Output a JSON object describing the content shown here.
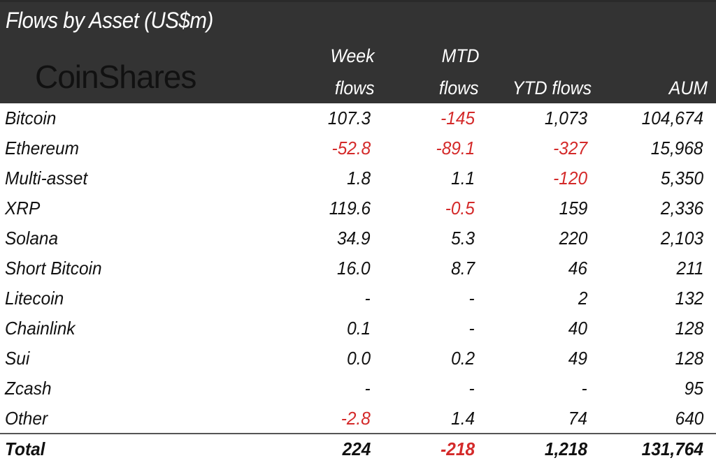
{
  "chart_data": {
    "type": "table",
    "title": "Flows by Asset (US$m)",
    "logo": "CoinShares",
    "columns": [
      [
        "Week",
        "flows"
      ],
      [
        "MTD",
        "flows"
      ],
      [
        "",
        "YTD flows"
      ],
      [
        "",
        "AUM"
      ]
    ],
    "negative_color": "#d42a2a",
    "header_color": "#333333",
    "rows": [
      {
        "name": "Bitcoin",
        "values": [
          "107.3",
          "-145",
          "1,073",
          "104,674"
        ]
      },
      {
        "name": "Ethereum",
        "values": [
          "-52.8",
          "-89.1",
          "-327",
          "15,968"
        ]
      },
      {
        "name": "Multi-asset",
        "values": [
          "1.8",
          "1.1",
          "-120",
          "5,350"
        ]
      },
      {
        "name": "XRP",
        "values": [
          "119.6",
          "-0.5",
          "159",
          "2,336"
        ]
      },
      {
        "name": "Solana",
        "values": [
          "34.9",
          "5.3",
          "220",
          "2,103"
        ]
      },
      {
        "name": "Short Bitcoin",
        "values": [
          "16.0",
          "8.7",
          "46",
          "211"
        ]
      },
      {
        "name": "Litecoin",
        "values": [
          "-",
          "-",
          "2",
          "132"
        ]
      },
      {
        "name": "Chainlink",
        "values": [
          "0.1",
          "-",
          "40",
          "128"
        ]
      },
      {
        "name": "Sui",
        "values": [
          "0.0",
          "0.2",
          "49",
          "128"
        ]
      },
      {
        "name": "Zcash",
        "values": [
          "-",
          "-",
          "-",
          "95"
        ]
      },
      {
        "name": "Other",
        "values": [
          "-2.8",
          "1.4",
          "74",
          "640"
        ]
      }
    ],
    "total": {
      "name": "Total",
      "values": [
        "224",
        "-218",
        "1,218",
        "131,764"
      ]
    }
  }
}
